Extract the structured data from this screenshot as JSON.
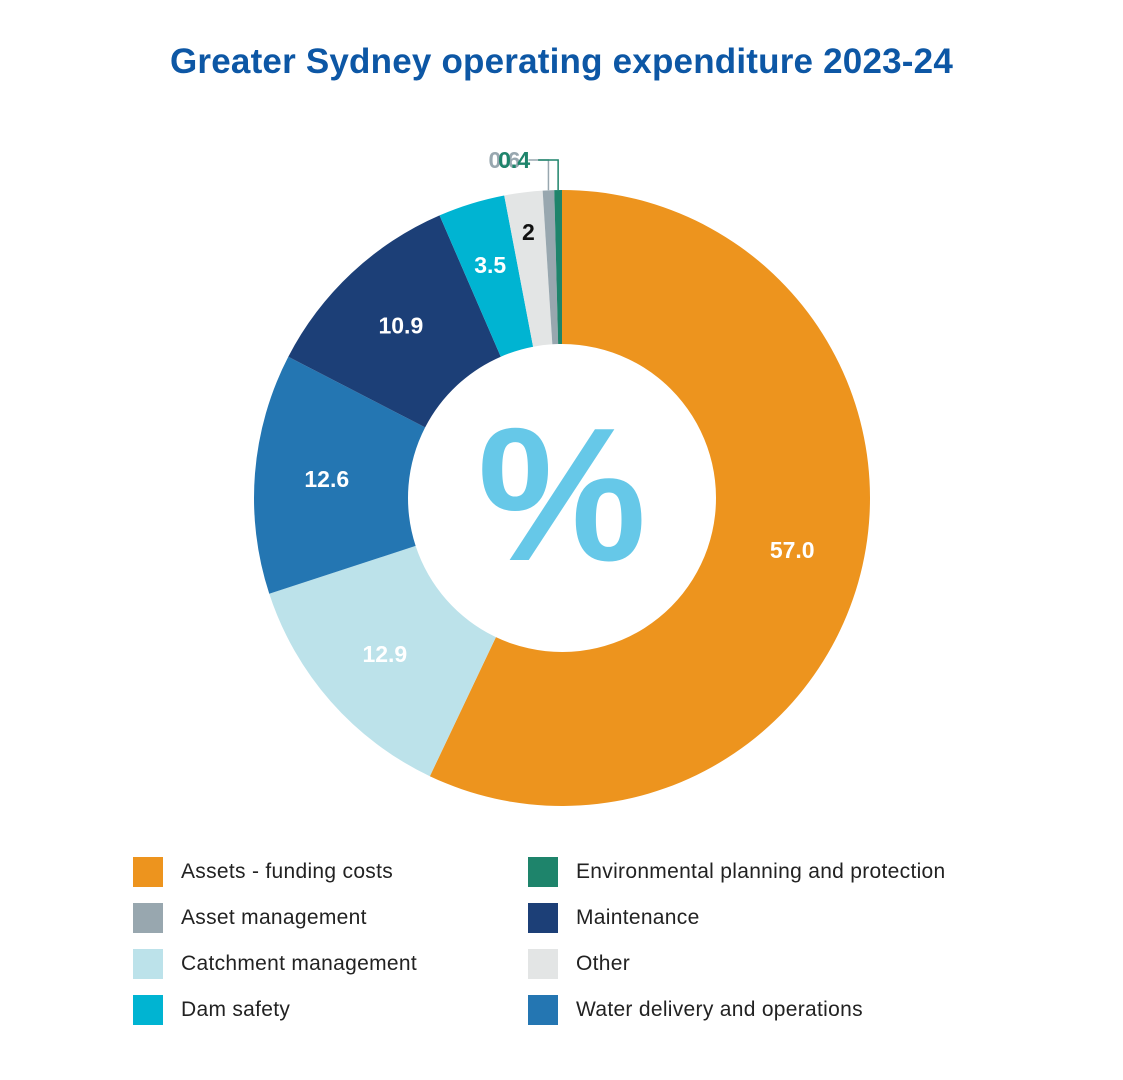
{
  "chart_data": {
    "type": "pie",
    "title": "Greater Sydney operating expenditure 2023-24",
    "center_label": "%",
    "slices": [
      {
        "label": "Assets - funding costs",
        "value": 57.0,
        "value_label": "57.0",
        "color": "#ED941E"
      },
      {
        "label": "Catchment management",
        "value": 12.9,
        "value_label": "12.9",
        "color": "#BCE2EA"
      },
      {
        "label": "Water delivery and operations",
        "value": 12.6,
        "value_label": "12.6",
        "color": "#2476B2"
      },
      {
        "label": "Maintenance",
        "value": 10.9,
        "value_label": "10.9",
        "color": "#1C3F77"
      },
      {
        "label": "Dam safety",
        "value": 3.5,
        "value_label": "3.5",
        "color": "#00B4D2"
      },
      {
        "label": "Other",
        "value": 2.0,
        "value_label": "2",
        "color": "#E3E5E5"
      },
      {
        "label": "Asset management",
        "value": 0.6,
        "value_label": "0.6",
        "color": "#98A7AF"
      },
      {
        "label": "Environmental planning and protection",
        "value": 0.4,
        "value_label": "0.4",
        "color": "#1E846B"
      }
    ],
    "legend": [
      {
        "label": "Assets - funding costs",
        "color": "#ED941E"
      },
      {
        "label": "Environmental planning and protection",
        "color": "#1E846B"
      },
      {
        "label": "Asset management",
        "color": "#98A7AF"
      },
      {
        "label": "Maintenance",
        "color": "#1C3F77"
      },
      {
        "label": "Catchment management",
        "color": "#BCE2EA"
      },
      {
        "label": "Other",
        "color": "#E3E5E5"
      },
      {
        "label": "Dam safety",
        "color": "#00B4D2"
      },
      {
        "label": "Water delivery and operations",
        "color": "#2476B2"
      }
    ],
    "legend_placement": "bottom",
    "title_color": "#0D57A5",
    "center_icon_color": "#66C8E8"
  }
}
